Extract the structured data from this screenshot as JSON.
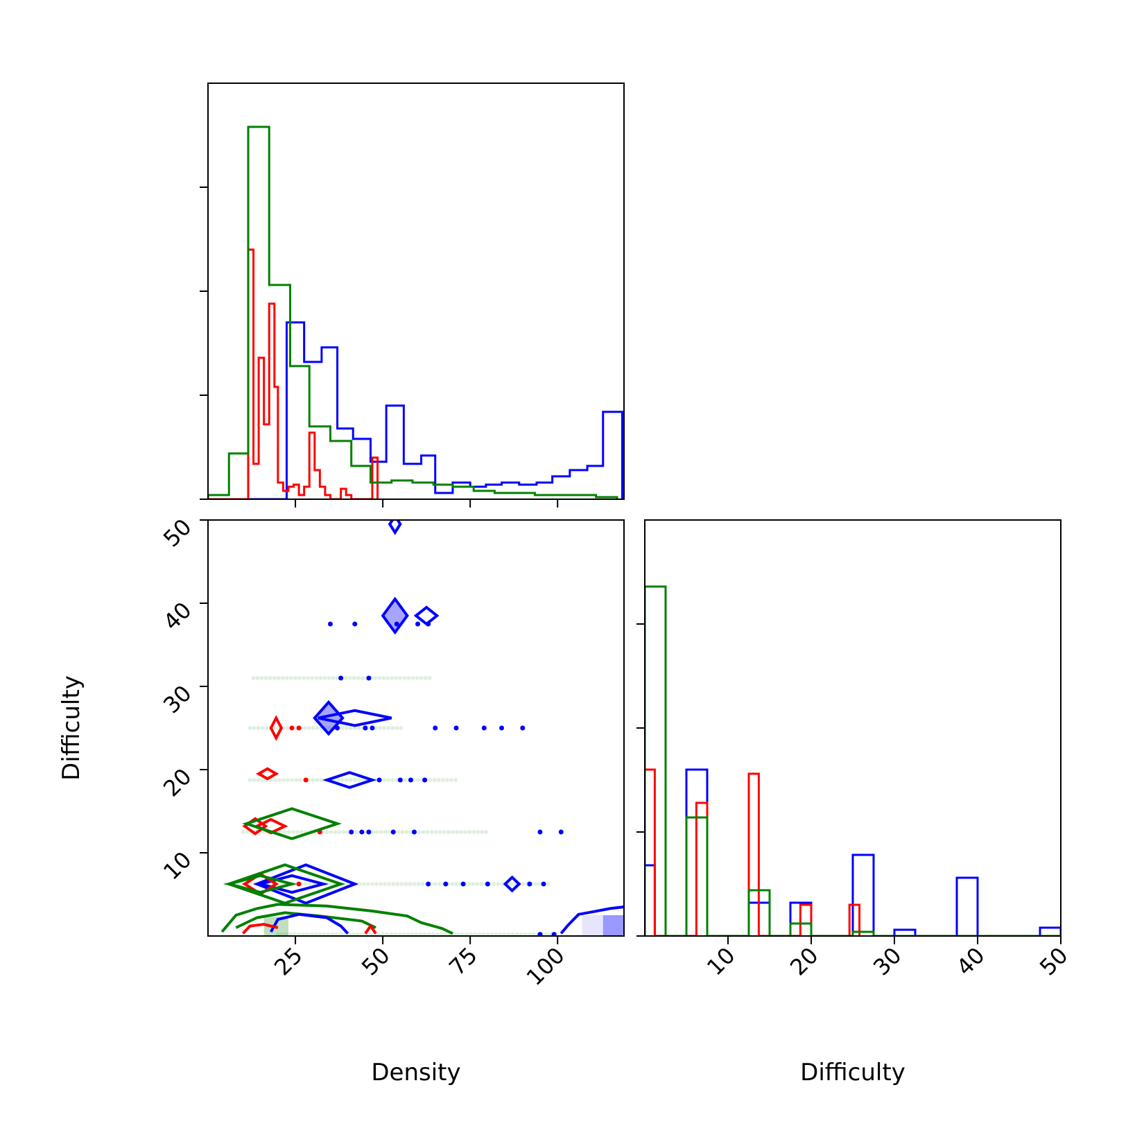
{
  "chart_data": {
    "type": "corner",
    "series": [
      {
        "color_name": "blue",
        "color": "#0000ff"
      },
      {
        "color_name": "red",
        "color": "#ff0000"
      },
      {
        "color_name": "green",
        "color": "#008000"
      }
    ],
    "variables": [
      {
        "name": "Density",
        "xlim": [
          0,
          119
        ],
        "ticks": [
          "25",
          "50",
          "75",
          "100"
        ],
        "tick_values": [
          25,
          50,
          75,
          100
        ]
      },
      {
        "name": "Difficulty",
        "xlim": [
          0,
          50
        ],
        "ticks": [
          "10",
          "20",
          "30",
          "40",
          "50"
        ],
        "tick_values": [
          10,
          20,
          30,
          40,
          50
        ]
      }
    ],
    "density_hist": {
      "ylim": [
        0,
        1.0
      ],
      "y_ticks": [
        0,
        0.25,
        0.5,
        0.75
      ],
      "series": [
        {
          "name": "",
          "color": "#0000ff",
          "edges": [
            0,
            22.5,
            27.5,
            32.5,
            37,
            41.5,
            46.5,
            51,
            56,
            61,
            65,
            70,
            75,
            79.5,
            84,
            89,
            94,
            98.5,
            103.5,
            108.5,
            113,
            118.5
          ],
          "heights": [
            0,
            0.425,
            0.33,
            0.365,
            0.17,
            0.145,
            0.09,
            0.225,
            0.085,
            0.105,
            0.015,
            0.04,
            0.03,
            0.035,
            0.04,
            0.035,
            0.04,
            0.055,
            0.07,
            0.08,
            0.21
          ]
        },
        {
          "name": "",
          "color": "#ff0000",
          "edges": [
            0,
            11.5,
            13,
            14.5,
            16,
            17.5,
            19,
            20,
            21.5,
            23,
            24.5,
            26,
            27.5,
            29,
            30.5,
            32,
            33.5,
            35,
            38,
            39.5,
            41,
            42.5,
            44,
            45.5,
            47,
            48.5
          ],
          "heights": [
            0,
            0.6,
            0.085,
            0.34,
            0.18,
            0.47,
            0.27,
            0.04,
            0.02,
            0.03,
            0.035,
            0.01,
            0.03,
            0.16,
            0.07,
            0.03,
            0.01,
            0.0,
            0.025,
            0.01,
            0.0,
            0.0,
            0.0,
            0.0,
            0.1
          ]
        },
        {
          "name": "",
          "color": "#008000",
          "edges": [
            0,
            6,
            11.5,
            17.5,
            23.5,
            29,
            35,
            41,
            46.5,
            52.5,
            58.5,
            64.5,
            70,
            76,
            82,
            87.5,
            93.5,
            99.5,
            105,
            111,
            117
          ],
          "heights": [
            0.01,
            0.11,
            0.895,
            0.515,
            0.32,
            0.175,
            0.14,
            0.08,
            0.04,
            0.045,
            0.04,
            0.035,
            0.03,
            0.02,
            0.015,
            0.015,
            0.01,
            0.01,
            0.01,
            0.005
          ]
        }
      ]
    },
    "difficulty_hist": {
      "ylim": [
        0,
        1.0
      ],
      "y_ticks": [
        0,
        0.25,
        0.5,
        0.75
      ],
      "series": [
        {
          "name": "",
          "color": "#0000ff",
          "edges": [
            0,
            1.2,
            5,
            7.5,
            12.5,
            15,
            17.5,
            20,
            25,
            27.5,
            30,
            32.5,
            37.5,
            40,
            47.5,
            50
          ],
          "heights": [
            0.17,
            0.0,
            0.4,
            0.0,
            0.08,
            0.0,
            0.08,
            0.0,
            0.195,
            0.0,
            0.015,
            0.0,
            0.14,
            0.0,
            0.02
          ]
        },
        {
          "name": "",
          "color": "#ff0000",
          "edges": [
            0,
            1.2,
            5,
            6.2,
            7.5,
            12.5,
            13.7,
            17.5,
            18.7,
            20,
            24.6,
            25.8
          ],
          "heights": [
            0.4,
            0.0,
            0.0,
            0.32,
            0.0,
            0.39,
            0.0,
            0.0,
            0.075,
            0.0,
            0.075
          ]
        },
        {
          "name": "",
          "color": "#008000",
          "edges": [
            0,
            2.5,
            5,
            7.5,
            12.5,
            15,
            17.5,
            20,
            25,
            27.5,
            50
          ],
          "heights": [
            0.84,
            0.0,
            0.285,
            0.0,
            0.11,
            0.0,
            0.03,
            0.0,
            0.01,
            0.0
          ]
        }
      ]
    },
    "scatter_2d": {
      "x_variable": "Density",
      "y_variable": "Difficulty",
      "xlim": [
        0,
        119
      ],
      "ylim": [
        0,
        50
      ],
      "points": [
        {
          "color": "#0000ff",
          "x": 35,
          "y": 37.5
        },
        {
          "color": "#0000ff",
          "x": 42,
          "y": 37.5
        },
        {
          "color": "#0000ff",
          "x": 54,
          "y": 37.5
        },
        {
          "color": "#0000ff",
          "x": 60,
          "y": 37.5
        },
        {
          "color": "#0000ff",
          "x": 63,
          "y": 37.5
        },
        {
          "color": "#0000ff",
          "x": 38,
          "y": 31
        },
        {
          "color": "#0000ff",
          "x": 46,
          "y": 31
        },
        {
          "color": "#0000ff",
          "x": 37,
          "y": 25
        },
        {
          "color": "#0000ff",
          "x": 45,
          "y": 25
        },
        {
          "color": "#0000ff",
          "x": 47,
          "y": 25
        },
        {
          "color": "#0000ff",
          "x": 65,
          "y": 25
        },
        {
          "color": "#0000ff",
          "x": 71,
          "y": 25
        },
        {
          "color": "#0000ff",
          "x": 79,
          "y": 25
        },
        {
          "color": "#0000ff",
          "x": 84,
          "y": 25
        },
        {
          "color": "#0000ff",
          "x": 90,
          "y": 25
        },
        {
          "color": "#0000ff",
          "x": 49,
          "y": 18.75
        },
        {
          "color": "#0000ff",
          "x": 55,
          "y": 18.75
        },
        {
          "color": "#0000ff",
          "x": 58,
          "y": 18.75
        },
        {
          "color": "#0000ff",
          "x": 62,
          "y": 18.75
        },
        {
          "color": "#0000ff",
          "x": 41,
          "y": 12.5
        },
        {
          "color": "#0000ff",
          "x": 44,
          "y": 12.5
        },
        {
          "color": "#0000ff",
          "x": 46,
          "y": 12.5
        },
        {
          "color": "#0000ff",
          "x": 53,
          "y": 12.5
        },
        {
          "color": "#0000ff",
          "x": 59,
          "y": 12.5
        },
        {
          "color": "#0000ff",
          "x": 95,
          "y": 12.5
        },
        {
          "color": "#0000ff",
          "x": 101,
          "y": 12.5
        },
        {
          "color": "#0000ff",
          "x": 63,
          "y": 6.25
        },
        {
          "color": "#0000ff",
          "x": 68,
          "y": 6.25
        },
        {
          "color": "#0000ff",
          "x": 73,
          "y": 6.25
        },
        {
          "color": "#0000ff",
          "x": 80,
          "y": 6.25
        },
        {
          "color": "#0000ff",
          "x": 92,
          "y": 6.25
        },
        {
          "color": "#0000ff",
          "x": 96,
          "y": 6.25
        },
        {
          "color": "#0000ff",
          "x": 95,
          "y": 0.2
        },
        {
          "color": "#0000ff",
          "x": 99,
          "y": 0.2
        },
        {
          "color": "#ff0000",
          "x": 24,
          "y": 25
        },
        {
          "color": "#ff0000",
          "x": 26,
          "y": 25
        },
        {
          "color": "#ff0000",
          "x": 28,
          "y": 18.75
        },
        {
          "color": "#ff0000",
          "x": 32,
          "y": 12.5
        },
        {
          "color": "#ff0000",
          "x": 26,
          "y": 6.25
        }
      ],
      "green_rows": [
        {
          "y": 31,
          "x_from": 13,
          "x_to": 64
        },
        {
          "y": 25,
          "x_from": 12,
          "x_to": 56
        },
        {
          "y": 18.75,
          "x_from": 12,
          "x_to": 71
        },
        {
          "y": 12.5,
          "x_from": 10,
          "x_to": 80
        },
        {
          "y": 6.25,
          "x_from": 5,
          "x_to": 98
        },
        {
          "y": 0.2,
          "x_from": 20,
          "x_to": 100
        }
      ],
      "contours": [
        {
          "color": "#0000ff",
          "fill": true,
          "cx": 53.5,
          "cy": 38.5,
          "rx": 3.5,
          "ry": 2.0
        },
        {
          "color": "#0000ff",
          "fill": false,
          "cx": 62.5,
          "cy": 38.5,
          "rx": 3.0,
          "ry": 1.0
        },
        {
          "color": "#0000ff",
          "fill": false,
          "cx": 53.5,
          "cy": 49.5,
          "rx": 1.5,
          "ry": 1.0
        },
        {
          "color": "#0000ff",
          "fill": true,
          "cx": 34.5,
          "cy": 26.2,
          "rx": 4.0,
          "ry": 1.9
        },
        {
          "color": "#0000ff",
          "fill": false,
          "cx": 42,
          "cy": 26.2,
          "rx": 10.5,
          "ry": 0.9
        },
        {
          "color": "#0000ff",
          "fill": false,
          "cx": 40.5,
          "cy": 18.75,
          "rx": 6.5,
          "ry": 0.9
        },
        {
          "color": "#0000ff",
          "fill": false,
          "cx": 87,
          "cy": 6.25,
          "rx": 2.0,
          "ry": 0.8
        },
        {
          "color": "#0000ff",
          "fill": false,
          "cx": 28,
          "cy": 6.25,
          "rx": 14,
          "ry": 2.3
        },
        {
          "color": "#0000ff",
          "fill": false,
          "cx": 24,
          "cy": 6.25,
          "rx": 9,
          "ry": 1.0
        },
        {
          "color": "#ff0000",
          "fill": false,
          "cx": 19.5,
          "cy": 25,
          "rx": 1.5,
          "ry": 1.2
        },
        {
          "color": "#ff0000",
          "fill": false,
          "cx": 17,
          "cy": 19.5,
          "rx": 2.5,
          "ry": 0.6
        },
        {
          "color": "#ff0000",
          "fill": false,
          "cx": 13.5,
          "cy": 13.2,
          "rx": 3.0,
          "ry": 0.9
        },
        {
          "color": "#ff0000",
          "fill": false,
          "cx": 18,
          "cy": 13.2,
          "rx": 4.0,
          "ry": 0.8
        },
        {
          "color": "#ff0000",
          "fill": false,
          "cx": 15,
          "cy": 6.25,
          "rx": 4.5,
          "ry": 1.2
        },
        {
          "color": "#008000",
          "fill": false,
          "cx": 24,
          "cy": 13.5,
          "rx": 13,
          "ry": 1.8
        },
        {
          "color": "#008000",
          "fill": false,
          "cx": 22,
          "cy": 6.25,
          "rx": 16,
          "ry": 2.3
        },
        {
          "color": "#008000",
          "fill": false,
          "cx": 15,
          "cy": 6.25,
          "rx": 9,
          "ry": 1.0
        }
      ],
      "bottom_lines": [
        {
          "color": "#008000",
          "points": [
            [
              4,
              0.5
            ],
            [
              8,
              2.5
            ],
            [
              14,
              3.3
            ],
            [
              20,
              3.8
            ],
            [
              34,
              3.6
            ],
            [
              47,
              3.0
            ],
            [
              57,
              2.4
            ],
            [
              61,
              1.6
            ],
            [
              67,
              0.9
            ],
            [
              70,
              0.3
            ]
          ]
        },
        {
          "color": "#008000",
          "points": [
            [
              8,
              1.0
            ],
            [
              14,
              2.2
            ],
            [
              22,
              2.8
            ],
            [
              32,
              2.4
            ],
            [
              44,
              1.8
            ],
            [
              48,
              1.0
            ]
          ]
        },
        {
          "color": "#0000ff",
          "points": [
            [
              18,
              0.5
            ],
            [
              20,
              2.0
            ],
            [
              26,
              2.6
            ],
            [
              34,
              2.2
            ],
            [
              38,
              1.2
            ],
            [
              40,
              0.3
            ]
          ]
        },
        {
          "color": "#0000ff",
          "points": [
            [
              101,
              0.3
            ],
            [
              103,
              1.3
            ],
            [
              106,
              2.6
            ],
            [
              110,
              2.9
            ],
            [
              115,
              3.3
            ],
            [
              119,
              3.5
            ]
          ]
        },
        {
          "color": "#ff0000",
          "points": [
            [
              10,
              0.3
            ],
            [
              12,
              1.2
            ],
            [
              16,
              1.4
            ],
            [
              20,
              1.0
            ]
          ]
        },
        {
          "color": "#ff0000",
          "points": [
            [
              45,
              0.3
            ],
            [
              46.5,
              1.2
            ],
            [
              48,
              0.3
            ]
          ]
        }
      ],
      "shaded_bins": [
        {
          "color": "#0000ff",
          "x0": 113,
          "x1": 119,
          "y0": 0,
          "y1": 2.5,
          "opacity": 0.4
        },
        {
          "color": "#0000ff",
          "x0": 107,
          "x1": 113,
          "y0": 0,
          "y1": 2.5,
          "opacity": 0.1
        },
        {
          "color": "#008000",
          "x0": 16,
          "x1": 23,
          "y0": 0,
          "y1": 2.3,
          "opacity": 0.25
        }
      ]
    }
  }
}
